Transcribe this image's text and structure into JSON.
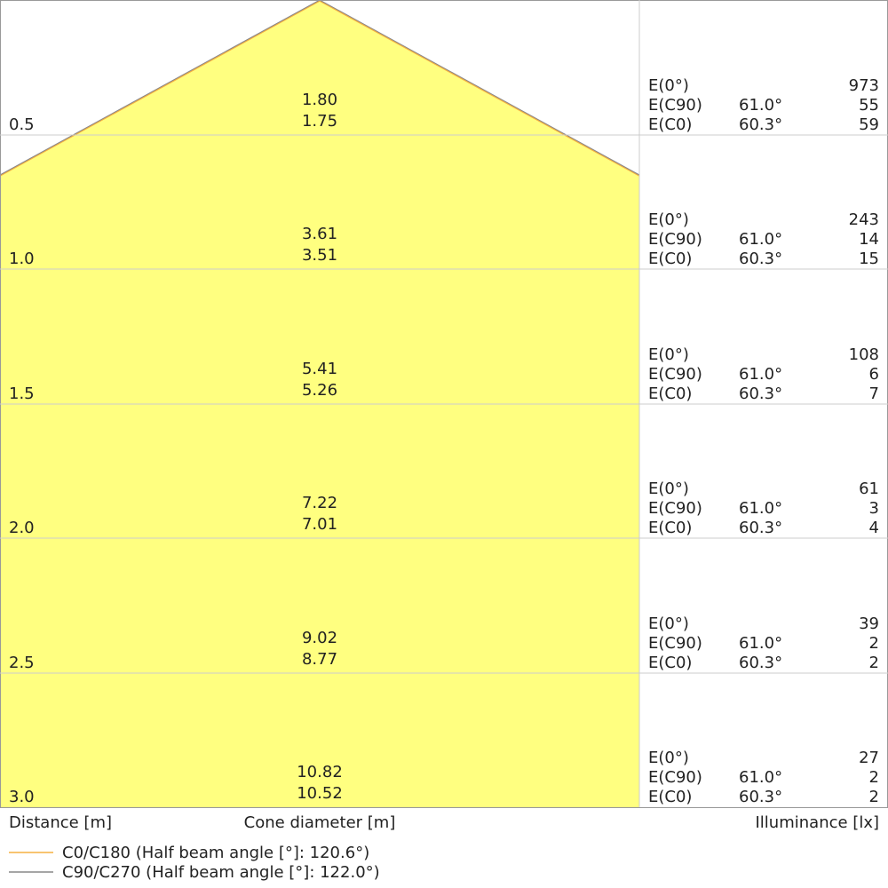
{
  "chart_data": {
    "type": "cone-diagram",
    "xlabel": "Distance [m]",
    "center_label": "Cone diameter [m]",
    "ylabel": "Illuminance [lx]",
    "colors": {
      "cone_fill": "#ffff80",
      "c0_line": "#f5b041",
      "c90_line": "#888888",
      "grid": "#cccccc"
    },
    "legend": [
      {
        "label": "C0/C180 (Half beam angle [°]: 120.6°)",
        "color": "#f5b041"
      },
      {
        "label": "C90/C270 (Half beam angle [°]: 122.0°)",
        "color": "#888888"
      }
    ],
    "rows": [
      {
        "distance": "0.5",
        "diam_c90": "1.80",
        "diam_c0": "1.75",
        "e0": "973",
        "ec90": "55",
        "ec0": "59"
      },
      {
        "distance": "1.0",
        "diam_c90": "3.61",
        "diam_c0": "3.51",
        "e0": "243",
        "ec90": "14",
        "ec0": "15"
      },
      {
        "distance": "1.5",
        "diam_c90": "5.41",
        "diam_c0": "5.26",
        "e0": "108",
        "ec90": "6",
        "ec0": "7"
      },
      {
        "distance": "2.0",
        "diam_c90": "7.22",
        "diam_c0": "7.01",
        "e0": "61",
        "ec90": "3",
        "ec0": "4"
      },
      {
        "distance": "2.5",
        "diam_c90": "9.02",
        "diam_c0": "8.77",
        "e0": "39",
        "ec90": "2",
        "ec0": "2"
      },
      {
        "distance": "3.0",
        "diam_c90": "10.82",
        "diam_c0": "10.52",
        "e0": "27",
        "ec90": "2",
        "ec0": "2"
      }
    ],
    "row_labels": {
      "e0": "E(0°)",
      "ec90": "E(C90)",
      "ec0": "E(C0)",
      "angle_c90": "61.0°",
      "angle_c0": "60.3°"
    }
  }
}
